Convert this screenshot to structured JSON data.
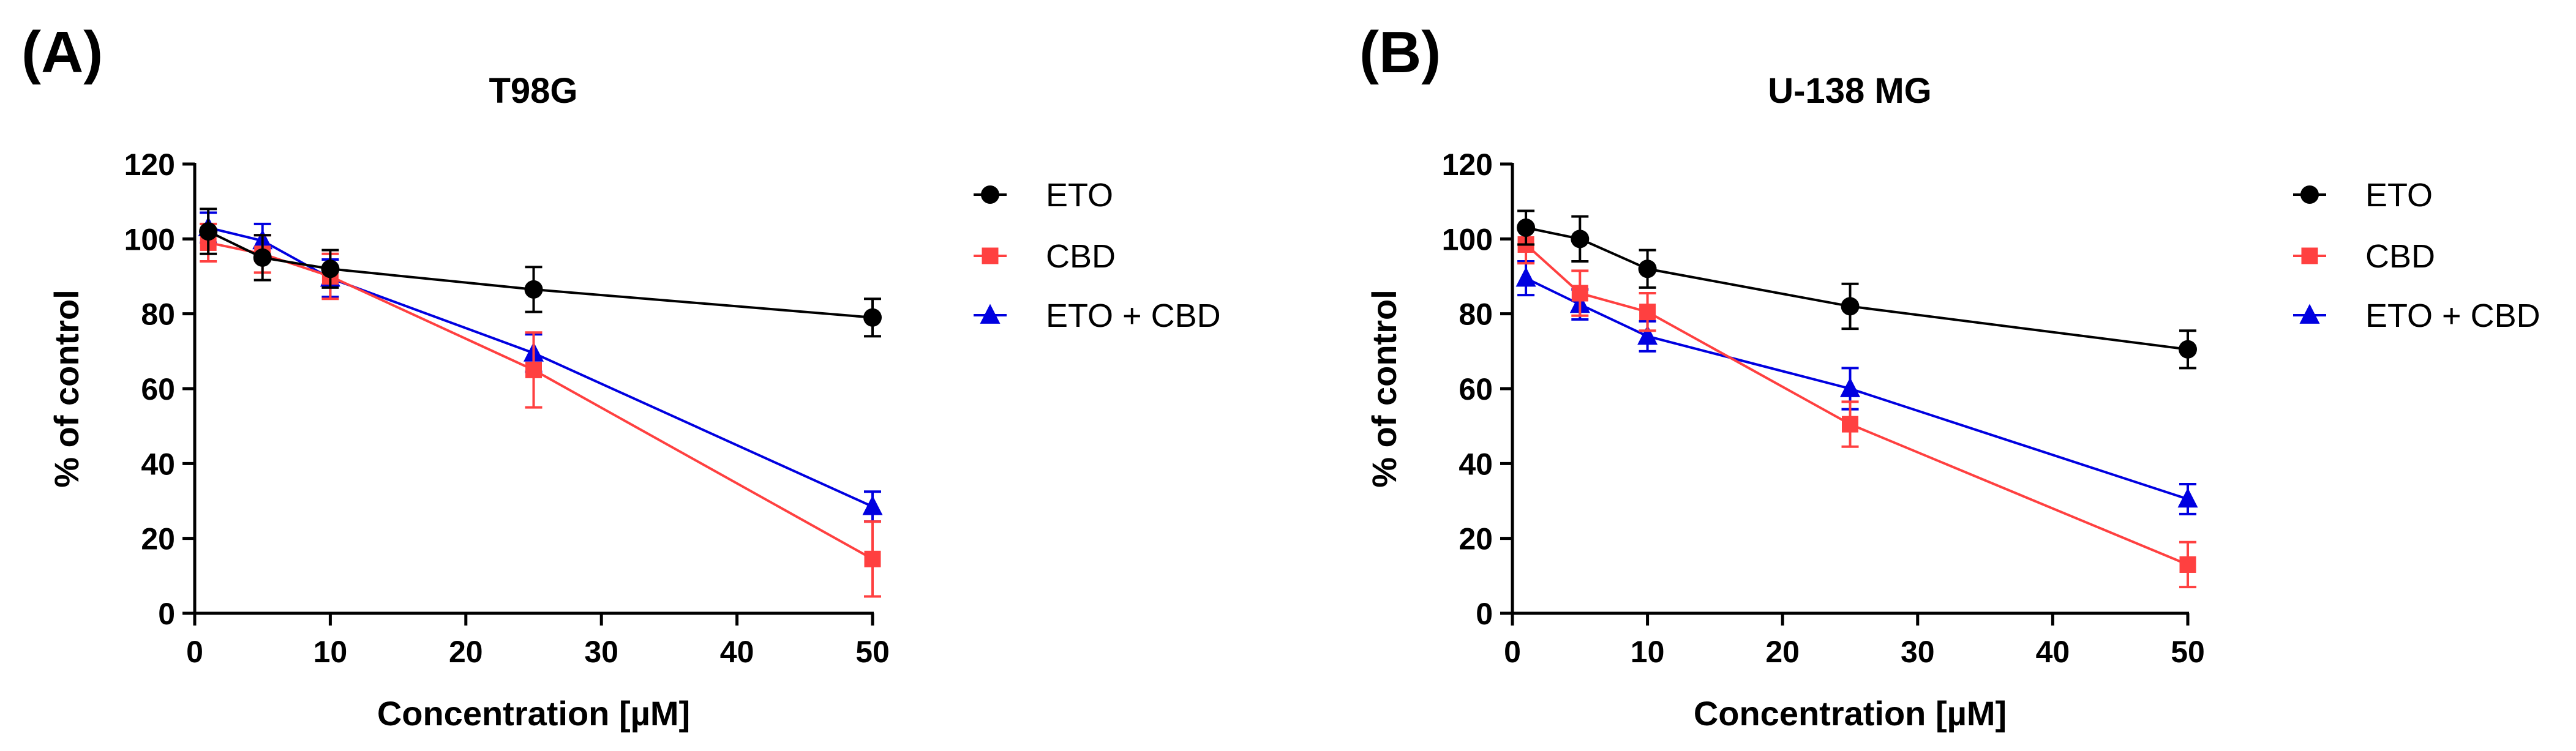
{
  "colors": {
    "ETO": "#000000",
    "CBD": "#ff4040",
    "ETO + CBD": "#0000e0"
  },
  "chart_data": [
    {
      "type": "line",
      "panel_label": "(A)",
      "title": "T98G",
      "xlabel": "Concentration [µM]",
      "ylabel": "% of control",
      "xlim": [
        0,
        50
      ],
      "ylim": [
        0,
        120
      ],
      "xticks": [
        0,
        10,
        20,
        30,
        40,
        50
      ],
      "yticks": [
        0,
        20,
        40,
        60,
        80,
        100,
        120
      ],
      "x": [
        1,
        5,
        10,
        25,
        50
      ],
      "legend_position": "right",
      "series": [
        {
          "name": "ETO",
          "marker": "circle",
          "values": [
            102,
            95,
            92,
            86.5,
            79
          ],
          "errors": [
            6,
            6,
            5,
            6,
            5
          ]
        },
        {
          "name": "CBD",
          "marker": "square",
          "values": [
            99,
            96,
            90,
            65,
            14.5
          ],
          "errors": [
            5,
            5,
            6,
            10,
            10
          ]
        },
        {
          "name": "ETO + CBD",
          "marker": "triangle",
          "values": [
            103,
            99.5,
            89.5,
            69.5,
            28.5
          ],
          "errors": [
            4,
            4.5,
            5,
            5,
            4
          ]
        }
      ]
    },
    {
      "type": "line",
      "panel_label": "(B)",
      "title": "U-138 MG",
      "xlabel": "Concentration [µM]",
      "ylabel": "% of control",
      "xlim": [
        0,
        50
      ],
      "ylim": [
        0,
        120
      ],
      "xticks": [
        0,
        10,
        20,
        30,
        40,
        50
      ],
      "yticks": [
        0,
        20,
        40,
        60,
        80,
        100,
        120
      ],
      "x": [
        1,
        5,
        10,
        25,
        50
      ],
      "legend_position": "right",
      "series": [
        {
          "name": "ETO",
          "marker": "circle",
          "values": [
            103,
            100,
            92,
            82,
            70.5
          ],
          "errors": [
            4.5,
            6,
            5,
            6,
            5
          ]
        },
        {
          "name": "CBD",
          "marker": "square",
          "values": [
            98.5,
            85.5,
            80.5,
            50.5,
            13
          ],
          "errors": [
            5,
            6,
            5,
            6,
            6
          ]
        },
        {
          "name": "ETO + CBD",
          "marker": "triangle",
          "values": [
            89.5,
            82.5,
            74,
            60,
            30.5
          ],
          "errors": [
            4.5,
            4,
            4,
            5.5,
            4
          ]
        }
      ]
    }
  ]
}
